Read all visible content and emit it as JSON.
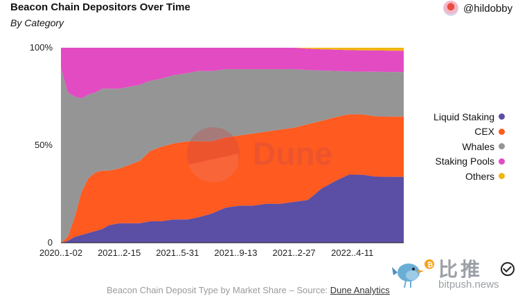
{
  "header": {
    "title": "Beacon Chain Depositors Over Time",
    "subtitle": "By Category",
    "author": "@hildobby"
  },
  "watermark": "Dune",
  "footer": {
    "source_text": "Beacon Chain Deposit Type by Market Share – Source: ",
    "source_link": "Dune Analytics"
  },
  "brand": {
    "name": "比推",
    "url": "bitpush.news"
  },
  "chart_data": {
    "type": "area",
    "stacked": true,
    "normalized": true,
    "x": [
      0,
      2,
      4,
      6,
      8,
      10,
      12,
      14,
      17,
      20,
      23,
      26,
      29,
      33,
      37,
      40,
      44,
      48,
      52,
      56,
      60,
      64,
      68,
      72,
      76,
      80,
      84,
      88,
      92,
      96,
      100
    ],
    "x_tick_labels": [
      "2020..1-02",
      "2021..2-15",
      "2021..5-31",
      "2021..9-13",
      "2021..2-27",
      "2022..4-11"
    ],
    "x_tick_positions": [
      0,
      17,
      34,
      51,
      68,
      85
    ],
    "y_ticks": [
      {
        "value": 0,
        "label": "0"
      },
      {
        "value": 50,
        "label": "50%"
      },
      {
        "value": 100,
        "label": "100%"
      }
    ],
    "ylim": [
      0,
      100
    ],
    "legend_position": "right",
    "series": [
      {
        "name": "Liquid Staking",
        "color": "#5b4ea5",
        "values": [
          0,
          1,
          3,
          4,
          5,
          6,
          7,
          9,
          10,
          10,
          10,
          11,
          11,
          12,
          12,
          13,
          15,
          18,
          19,
          19,
          20,
          20,
          21,
          22,
          28,
          32,
          35,
          35,
          34,
          34,
          34
        ]
      },
      {
        "name": "CEX",
        "color": "#ff5a1f",
        "values": [
          0,
          2,
          10,
          22,
          28,
          30,
          30,
          28,
          28,
          30,
          32,
          36,
          38,
          39,
          40,
          39,
          37,
          36,
          36,
          37,
          37,
          38,
          38,
          39,
          35,
          33,
          31,
          31,
          31,
          31,
          31
        ]
      },
      {
        "name": "Whales",
        "color": "#959595",
        "values": [
          90,
          74,
          62,
          48,
          43,
          41,
          42,
          42,
          41,
          40,
          39,
          36,
          35,
          35,
          35,
          36,
          36,
          35,
          34,
          33,
          32,
          31,
          30,
          28,
          26,
          24,
          22,
          22,
          23,
          23,
          23
        ]
      },
      {
        "name": "Staking Pools",
        "color": "#e34bc3",
        "values": [
          10,
          23,
          25,
          26,
          24,
          23,
          21,
          21,
          21,
          20,
          19,
          17,
          16,
          14,
          13,
          12,
          12,
          11,
          11,
          11,
          11,
          11,
          11,
          11,
          11,
          11,
          11,
          11,
          11,
          11,
          11
        ]
      },
      {
        "name": "Others",
        "color": "#f0b50f",
        "values": [
          0,
          0,
          0,
          0,
          0,
          0,
          0,
          0,
          0,
          0,
          0,
          0,
          0,
          0,
          0,
          0,
          0,
          0,
          0,
          0,
          0,
          0,
          0,
          0.5,
          0.8,
          1,
          1.2,
          1.3,
          1.4,
          1.5,
          1.5
        ]
      }
    ]
  }
}
